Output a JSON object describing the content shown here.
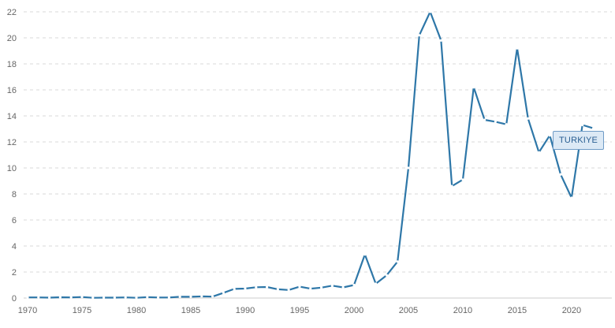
{
  "chart_data": {
    "type": "line",
    "title": "",
    "xlabel": "",
    "ylabel": "",
    "xlim": [
      1970,
      2023.7
    ],
    "ylim": [
      0,
      22
    ],
    "x_ticks": [
      1970,
      1975,
      1980,
      1985,
      1990,
      1995,
      2000,
      2005,
      2010,
      2015,
      2020
    ],
    "y_ticks": [
      0,
      2,
      4,
      6,
      8,
      10,
      12,
      14,
      16,
      18,
      20,
      22
    ],
    "grid": true,
    "series": [
      {
        "name": "TURKIYE",
        "color": "#2e77a8",
        "x": [
          1970,
          1971,
          1972,
          1973,
          1974,
          1975,
          1976,
          1977,
          1978,
          1979,
          1980,
          1981,
          1982,
          1983,
          1984,
          1985,
          1986,
          1987,
          1988,
          1989,
          1990,
          1991,
          1992,
          1993,
          1994,
          1995,
          1996,
          1997,
          1998,
          1999,
          2000,
          2001,
          2002,
          2003,
          2004,
          2005,
          2006,
          2007,
          2008,
          2009,
          2010,
          2011,
          2012,
          2013,
          2014,
          2015,
          2016,
          2017,
          2018,
          2019,
          2020,
          2021,
          2022
        ],
        "values": [
          0.05,
          0.05,
          0.03,
          0.06,
          0.05,
          0.08,
          0.02,
          0.03,
          0.03,
          0.05,
          0.02,
          0.07,
          0.04,
          0.04,
          0.1,
          0.1,
          0.13,
          0.11,
          0.4,
          0.7,
          0.73,
          0.83,
          0.85,
          0.67,
          0.62,
          0.87,
          0.72,
          0.8,
          0.95,
          0.82,
          1.0,
          3.35,
          1.1,
          1.75,
          2.8,
          10.0,
          20.2,
          22.0,
          19.8,
          8.6,
          9.1,
          16.2,
          13.7,
          13.55,
          13.35,
          19.2,
          13.8,
          11.2,
          12.5,
          9.5,
          7.7,
          13.3,
          13.05
        ]
      }
    ]
  }
}
